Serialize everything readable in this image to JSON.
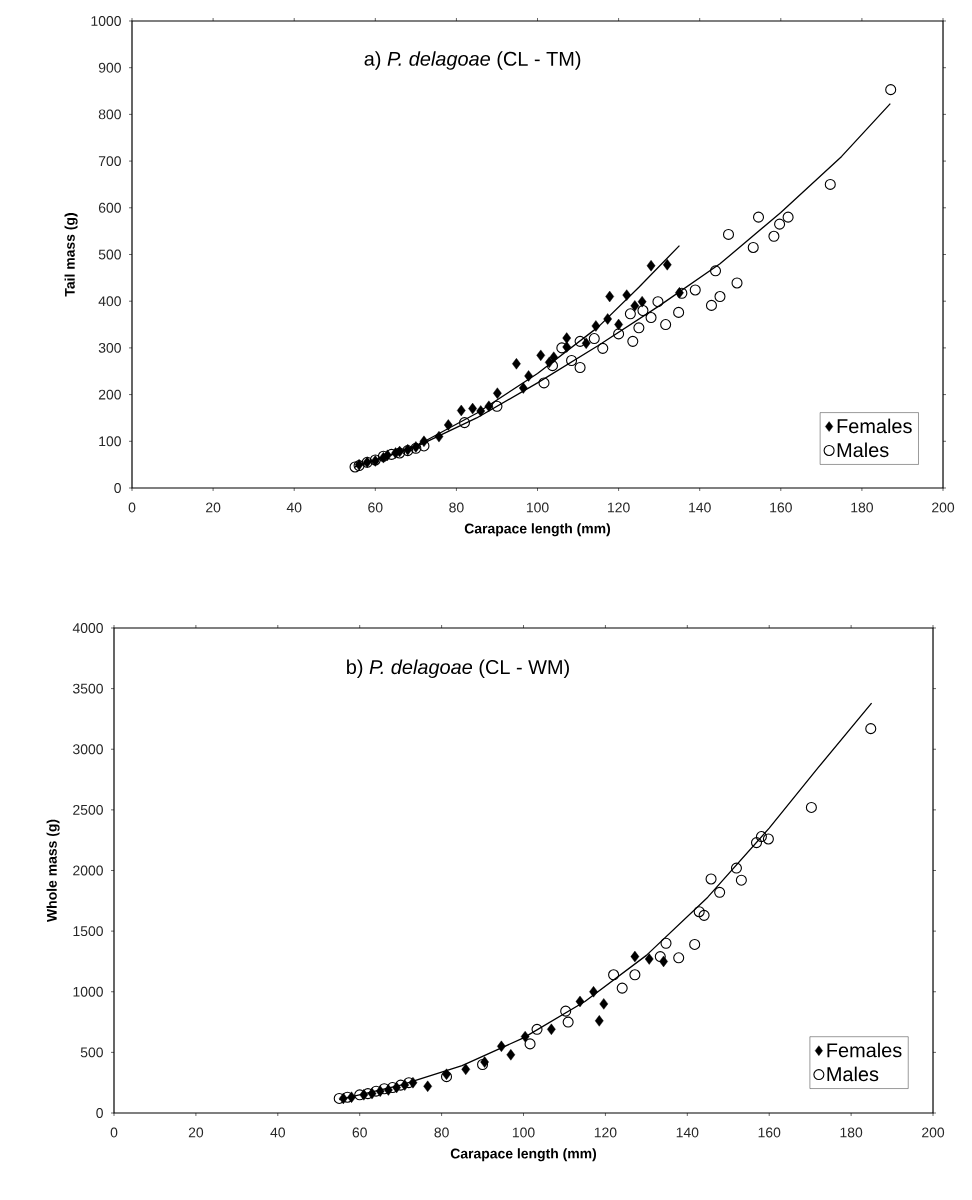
{
  "chart_data": [
    {
      "type": "scatter",
      "title": "a)  *P. delagoae*  (CL - TM)",
      "xlabel": "Carapace length (mm)",
      "ylabel": "Tail mass (g)",
      "xlim": [
        0,
        200
      ],
      "ylim": [
        0,
        1000
      ],
      "xticks": [
        0,
        20,
        40,
        60,
        80,
        100,
        120,
        140,
        160,
        180,
        200
      ],
      "yticks": [
        0,
        100,
        200,
        300,
        400,
        500,
        600,
        700,
        800,
        900,
        1000
      ],
      "legend": "bottom right",
      "series": [
        {
          "name": "Females",
          "color": "#000000",
          "marker": "diamond",
          "x": [
            56,
            58,
            60,
            62,
            63,
            65,
            66,
            68,
            70,
            72,
            75.7,
            78,
            81.2,
            84,
            86,
            88,
            90.1,
            94.8,
            96.5,
            97.8,
            100.8,
            102.9,
            104,
            107.2,
            107.2,
            112,
            114.4,
            117.3,
            117.8,
            120,
            122,
            124,
            125.8,
            128,
            132,
            135
          ],
          "values": [
            50,
            55,
            58,
            65,
            70,
            75,
            78,
            82,
            88,
            100,
            110,
            135,
            166,
            170,
            165,
            175,
            203,
            266,
            214,
            240,
            284,
            269,
            280,
            321,
            302,
            310,
            347,
            362,
            410,
            350,
            413,
            390,
            399,
            476,
            478,
            418
          ]
        },
        {
          "name": "Males",
          "color": "#000000",
          "marker": "circle",
          "x": [
            55,
            56,
            58,
            60,
            62,
            64,
            66,
            68,
            70,
            72,
            82,
            90,
            101.6,
            103.7,
            106,
            108.4,
            110.5,
            110.5,
            114,
            116.1,
            120,
            122.9,
            123.5,
            125,
            126,
            128,
            129.7,
            131.6,
            134.8,
            135.6,
            138.9,
            142.9,
            143.9,
            145,
            147.1,
            149.2,
            153.2,
            154.5,
            158.3,
            159.7,
            161.8,
            172.2,
            187.1
          ],
          "values": [
            45,
            48,
            55,
            60,
            68,
            72,
            75,
            80,
            85,
            90,
            140,
            175,
            225,
            262,
            300,
            273,
            314,
            258,
            320,
            299,
            330,
            373,
            314,
            343,
            380,
            365,
            399,
            350,
            376,
            417,
            424,
            391,
            465,
            410,
            543,
            439,
            515,
            580,
            539,
            565,
            580,
            650,
            853
          ]
        },
        {
          "type": "line",
          "color": "#000000",
          "x": [
            55,
            70,
            85,
            100,
            115,
            125,
            135
          ],
          "values": [
            45,
            90,
            160,
            245,
            345,
            430,
            519
          ]
        },
        {
          "type": "line",
          "color": "#000000",
          "x": [
            55,
            70,
            85,
            100,
            115,
            130,
            145,
            160,
            175,
            187
          ],
          "values": [
            45,
            88,
            150,
            225,
            305,
            390,
            480,
            590,
            710,
            823
          ]
        }
      ]
    },
    {
      "type": "scatter",
      "title": "b)  *P. delagoae*  (CL - WM)",
      "xlabel": "Carapace length (mm)",
      "ylabel": "Whole mass (g)",
      "xlim": [
        0,
        200
      ],
      "ylim": [
        0,
        4000
      ],
      "xticks": [
        0,
        20,
        40,
        60,
        80,
        100,
        120,
        140,
        160,
        180,
        200
      ],
      "yticks": [
        0,
        500,
        1000,
        1500,
        2000,
        2500,
        3000,
        3500,
        4000
      ],
      "legend": "bottom right",
      "series": [
        {
          "name": "Females",
          "color": "#000000",
          "marker": "diamond",
          "x": [
            56,
            58,
            61,
            63,
            65,
            67,
            69,
            71,
            73,
            76.6,
            81.2,
            85.9,
            90.5,
            94.6,
            96.9,
            100.4,
            106.8,
            113.8,
            117.1,
            118.5,
            119.6,
            127.2,
            130.7,
            134.2
          ],
          "values": [
            120,
            130,
            150,
            160,
            180,
            190,
            210,
            230,
            250,
            220,
            320,
            360,
            420,
            550,
            480,
            630,
            690,
            920,
            1000,
            760,
            900,
            1290,
            1270,
            1250
          ]
        },
        {
          "name": "Males",
          "color": "#000000",
          "marker": "circle",
          "x": [
            55,
            57,
            60,
            62,
            64,
            66,
            68,
            70,
            72,
            81.2,
            90,
            101.6,
            103.3,
            110.3,
            110.9,
            122,
            124.1,
            127.2,
            133.4,
            134.8,
            137.9,
            141.8,
            142.9,
            144.1,
            145.8,
            147.9,
            152,
            153.2,
            156.9,
            158.1,
            159.8,
            170.3,
            184.8
          ],
          "values": [
            120,
            130,
            150,
            160,
            180,
            200,
            210,
            230,
            250,
            300,
            400,
            570,
            690,
            840,
            750,
            1140,
            1030,
            1140,
            1290,
            1400,
            1280,
            1390,
            1660,
            1630,
            1930,
            1820,
            2020,
            1920,
            2230,
            2280,
            2260,
            2520,
            3170
          ]
        },
        {
          "type": "line",
          "color": "#000000",
          "x": [
            55,
            70,
            85,
            100,
            115,
            130,
            145,
            160,
            172,
            185
          ],
          "values": [
            110,
            230,
            390,
            620,
            920,
            1300,
            1780,
            2350,
            2850,
            3380
          ]
        }
      ]
    }
  ]
}
